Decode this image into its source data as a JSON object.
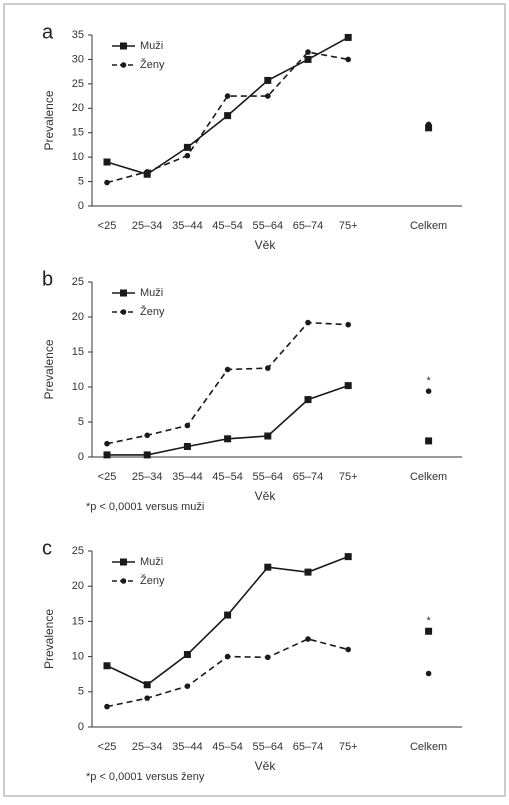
{
  "chart_data": [
    {
      "type": "line",
      "panel": "a",
      "ylabel": "Prevalence",
      "xlabel": "Věk",
      "categories": [
        "<25",
        "25–34",
        "35–44",
        "45–54",
        "55–64",
        "65–74",
        "75+",
        null,
        "Celkem"
      ],
      "series": [
        {
          "name": "Muži",
          "color": "#1a1a1a",
          "line_style": "solid",
          "marker": "square",
          "values": [
            9,
            6.5,
            12,
            18.5,
            25.7,
            30,
            34.5,
            null,
            16
          ]
        },
        {
          "name": "Ženy",
          "color": "#1a1a1a",
          "line_style": "dashed",
          "marker": "circle",
          "values": [
            4.8,
            7,
            10.3,
            22.5,
            22.5,
            31.5,
            30,
            null,
            16.7
          ]
        }
      ],
      "ylim": [
        0,
        35
      ],
      "yticks": [
        0,
        5,
        10,
        15,
        20,
        25,
        30,
        35
      ],
      "legend": "upper left"
    },
    {
      "type": "line",
      "panel": "b",
      "ylabel": "Prevalence",
      "xlabel": "Věk",
      "categories": [
        "<25",
        "25–34",
        "35–44",
        "45–54",
        "55–64",
        "65–74",
        "75+",
        null,
        "Celkem"
      ],
      "series": [
        {
          "name": "Muži",
          "color": "#1a1a1a",
          "line_style": "solid",
          "marker": "square",
          "values": [
            0.3,
            0.3,
            1.5,
            2.6,
            3,
            8.2,
            10.2,
            null,
            2.3
          ]
        },
        {
          "name": "Ženy",
          "color": "#1a1a1a",
          "line_style": "dashed",
          "marker": "circle",
          "values": [
            1.9,
            3.1,
            4.5,
            12.5,
            12.7,
            19.2,
            18.9,
            null,
            9.4
          ]
        }
      ],
      "ylim": [
        0,
        25
      ],
      "yticks": [
        0,
        5,
        10,
        15,
        20,
        25
      ],
      "legend": "upper left",
      "annotation": "*",
      "note": "*p < 0,0001 versus muži"
    },
    {
      "type": "line",
      "panel": "c",
      "ylabel": "Prevalence",
      "xlabel": "Věk",
      "categories": [
        "<25",
        "25–34",
        "35–44",
        "45–54",
        "55–64",
        "65–74",
        "75+",
        null,
        "Celkem"
      ],
      "series": [
        {
          "name": "Muži",
          "color": "#1a1a1a",
          "line_style": "solid",
          "marker": "square",
          "values": [
            8.7,
            6,
            10.3,
            15.9,
            22.7,
            22,
            24.2,
            null,
            13.6
          ]
        },
        {
          "name": "Ženy",
          "color": "#1a1a1a",
          "line_style": "dashed",
          "marker": "circle",
          "values": [
            2.9,
            4.1,
            5.8,
            10,
            9.9,
            12.5,
            11,
            null,
            7.6
          ]
        }
      ],
      "ylim": [
        0,
        25
      ],
      "yticks": [
        0,
        5,
        10,
        15,
        20,
        25
      ],
      "legend": "upper left",
      "annotation": "*",
      "note": "*p < 0,0001 versus ženy"
    }
  ]
}
